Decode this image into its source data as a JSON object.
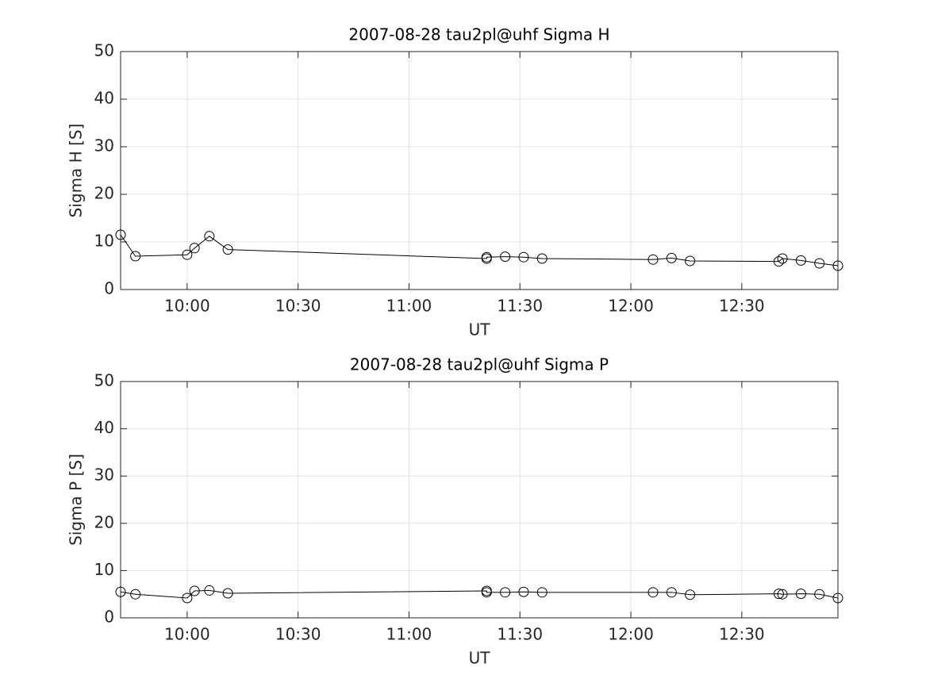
{
  "chart_data": [
    {
      "type": "line",
      "title": "2007-08-28  tau2pl@uhf Sigma H",
      "xlabel": "UT",
      "ylabel": "Sigma H [S]",
      "x": [
        "09:42",
        "09:46",
        "10:00",
        "10:02",
        "10:06",
        "10:11",
        "11:21",
        "11:21",
        "11:26",
        "11:31",
        "11:36",
        "12:06",
        "12:11",
        "12:16",
        "12:40",
        "12:41",
        "12:46",
        "12:51",
        "12:56"
      ],
      "values": [
        11.5,
        7.0,
        7.3,
        8.7,
        11.2,
        8.4,
        6.5,
        6.8,
        6.9,
        6.8,
        6.5,
        6.3,
        6.6,
        6.0,
        5.9,
        6.5,
        6.1,
        5.5,
        5.0
      ],
      "color": "#000000",
      "marker": "circle",
      "xlim": [
        "09:42",
        "12:56"
      ],
      "xticks": [
        "10:00",
        "10:30",
        "11:00",
        "11:30",
        "12:00",
        "12:30"
      ],
      "ylim": [
        0,
        50
      ],
      "yticks": [
        0,
        10,
        20,
        30,
        40,
        50
      ],
      "grid": true
    },
    {
      "type": "line",
      "title": "2007-08-28  tau2pl@uhf Sigma P",
      "xlabel": "UT",
      "ylabel": "Sigma P [S]",
      "x": [
        "09:42",
        "09:46",
        "10:00",
        "10:02",
        "10:06",
        "10:11",
        "11:21",
        "11:21",
        "11:26",
        "11:31",
        "11:36",
        "12:06",
        "12:11",
        "12:16",
        "12:40",
        "12:41",
        "12:46",
        "12:51",
        "12:56"
      ],
      "values": [
        5.5,
        5.0,
        4.2,
        5.7,
        5.8,
        5.2,
        5.7,
        5.4,
        5.4,
        5.5,
        5.4,
        5.4,
        5.4,
        4.9,
        5.1,
        5.0,
        5.1,
        5.0,
        4.2
      ],
      "color": "#000000",
      "marker": "circle",
      "xlim": [
        "09:42",
        "12:56"
      ],
      "xticks": [
        "10:00",
        "10:30",
        "11:00",
        "11:30",
        "12:00",
        "12:30"
      ],
      "ylim": [
        0,
        50
      ],
      "yticks": [
        0,
        10,
        20,
        30,
        40,
        50
      ],
      "grid": true
    }
  ]
}
